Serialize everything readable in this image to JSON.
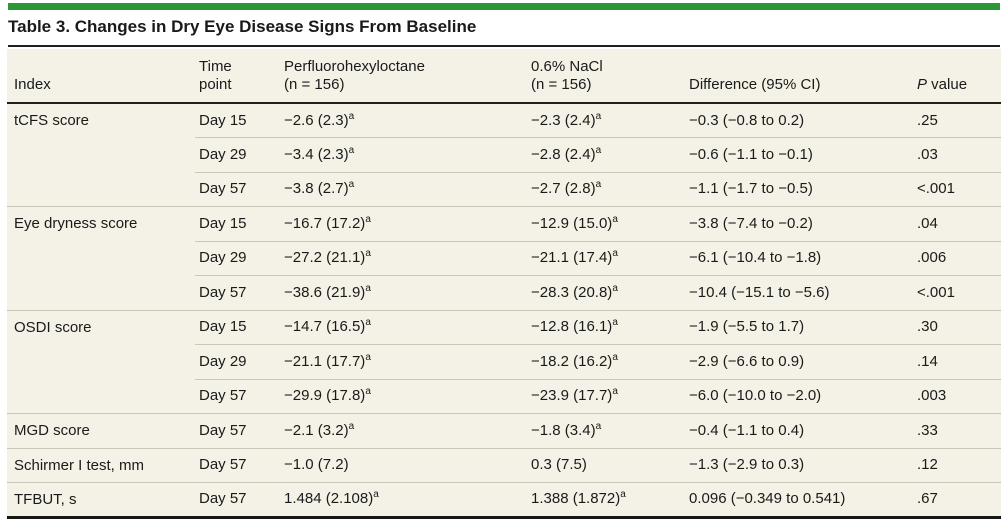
{
  "colors": {
    "accent_green": "#2d9637",
    "table_background": "#f4f1e6",
    "dark_rule": "#1f1f1f",
    "light_rule": "#c9c6b8"
  },
  "table": {
    "title": "Table 3. Changes in Dry Eye Disease Signs From Baseline",
    "footnote_marker": "a",
    "header": {
      "index": "Index",
      "time_point": "Time\npoint",
      "drug": "Perfluorohexyloctane\n(n = 156)",
      "nacl": "0.6% NaCl\n(n = 156)",
      "difference": "Difference (95% CI)",
      "p_italic": "P",
      "p_rest": " value"
    },
    "groups": [
      {
        "index": "tCFS score",
        "rows": [
          {
            "time": "Day 15",
            "drug": "−2.6 (2.3)",
            "drug_sup": "a",
            "nacl": "−2.3 (2.4)",
            "nacl_sup": "a",
            "diff": "−0.3 (−0.8 to 0.2)",
            "p": ".25"
          },
          {
            "time": "Day 29",
            "drug": "−3.4 (2.3)",
            "drug_sup": "a",
            "nacl": "−2.8 (2.4)",
            "nacl_sup": "a",
            "diff": "−0.6 (−1.1 to −0.1)",
            "p": ".03"
          },
          {
            "time": "Day 57",
            "drug": "−3.8 (2.7)",
            "drug_sup": "a",
            "nacl": "−2.7 (2.8)",
            "nacl_sup": "a",
            "diff": "−1.1 (−1.7 to −0.5)",
            "p": "<.001"
          }
        ]
      },
      {
        "index": "Eye dryness score",
        "rows": [
          {
            "time": "Day 15",
            "drug": "−16.7 (17.2)",
            "drug_sup": "a",
            "nacl": "−12.9 (15.0)",
            "nacl_sup": "a",
            "diff": "−3.8 (−7.4 to −0.2)",
            "p": ".04"
          },
          {
            "time": "Day 29",
            "drug": "−27.2 (21.1)",
            "drug_sup": "a",
            "nacl": "−21.1 (17.4)",
            "nacl_sup": "a",
            "diff": "−6.1 (−10.4 to −1.8)",
            "p": ".006"
          },
          {
            "time": "Day 57",
            "drug": "−38.6 (21.9)",
            "drug_sup": "a",
            "nacl": "−28.3 (20.8)",
            "nacl_sup": "a",
            "diff": "−10.4 (−15.1 to −5.6)",
            "p": "<.001"
          }
        ]
      },
      {
        "index": "OSDI score",
        "rows": [
          {
            "time": "Day 15",
            "drug": "−14.7 (16.5)",
            "drug_sup": "a",
            "nacl": "−12.8 (16.1)",
            "nacl_sup": "a",
            "diff": "−1.9 (−5.5 to 1.7)",
            "p": ".30"
          },
          {
            "time": "Day 29",
            "drug": "−21.1 (17.7)",
            "drug_sup": "a",
            "nacl": "−18.2 (16.2)",
            "nacl_sup": "a",
            "diff": "−2.9 (−6.6 to 0.9)",
            "p": ".14"
          },
          {
            "time": "Day 57",
            "drug": "−29.9 (17.8)",
            "drug_sup": "a",
            "nacl": "−23.9 (17.7)",
            "nacl_sup": "a",
            "diff": "−6.0 (−10.0 to −2.0)",
            "p": ".003"
          }
        ]
      },
      {
        "index": "MGD score",
        "rows": [
          {
            "time": "Day 57",
            "drug": "−2.1 (3.2)",
            "drug_sup": "a",
            "nacl": "−1.8 (3.4)",
            "nacl_sup": "a",
            "diff": "−0.4 (−1.1 to 0.4)",
            "p": ".33"
          }
        ]
      },
      {
        "index": "Schirmer I test, mm",
        "rows": [
          {
            "time": "Day 57",
            "drug": "−1.0 (7.2)",
            "drug_sup": "",
            "nacl": "0.3 (7.5)",
            "nacl_sup": "",
            "diff": "−1.3 (−2.9 to 0.3)",
            "p": ".12"
          }
        ]
      },
      {
        "index": "TFBUT, s",
        "rows": [
          {
            "time": "Day 57",
            "drug": "1.484 (2.108)",
            "drug_sup": "a",
            "nacl": "1.388 (1.872)",
            "nacl_sup": "a",
            "diff": "0.096 (−0.349 to 0.541)",
            "p": ".67"
          }
        ]
      }
    ]
  }
}
